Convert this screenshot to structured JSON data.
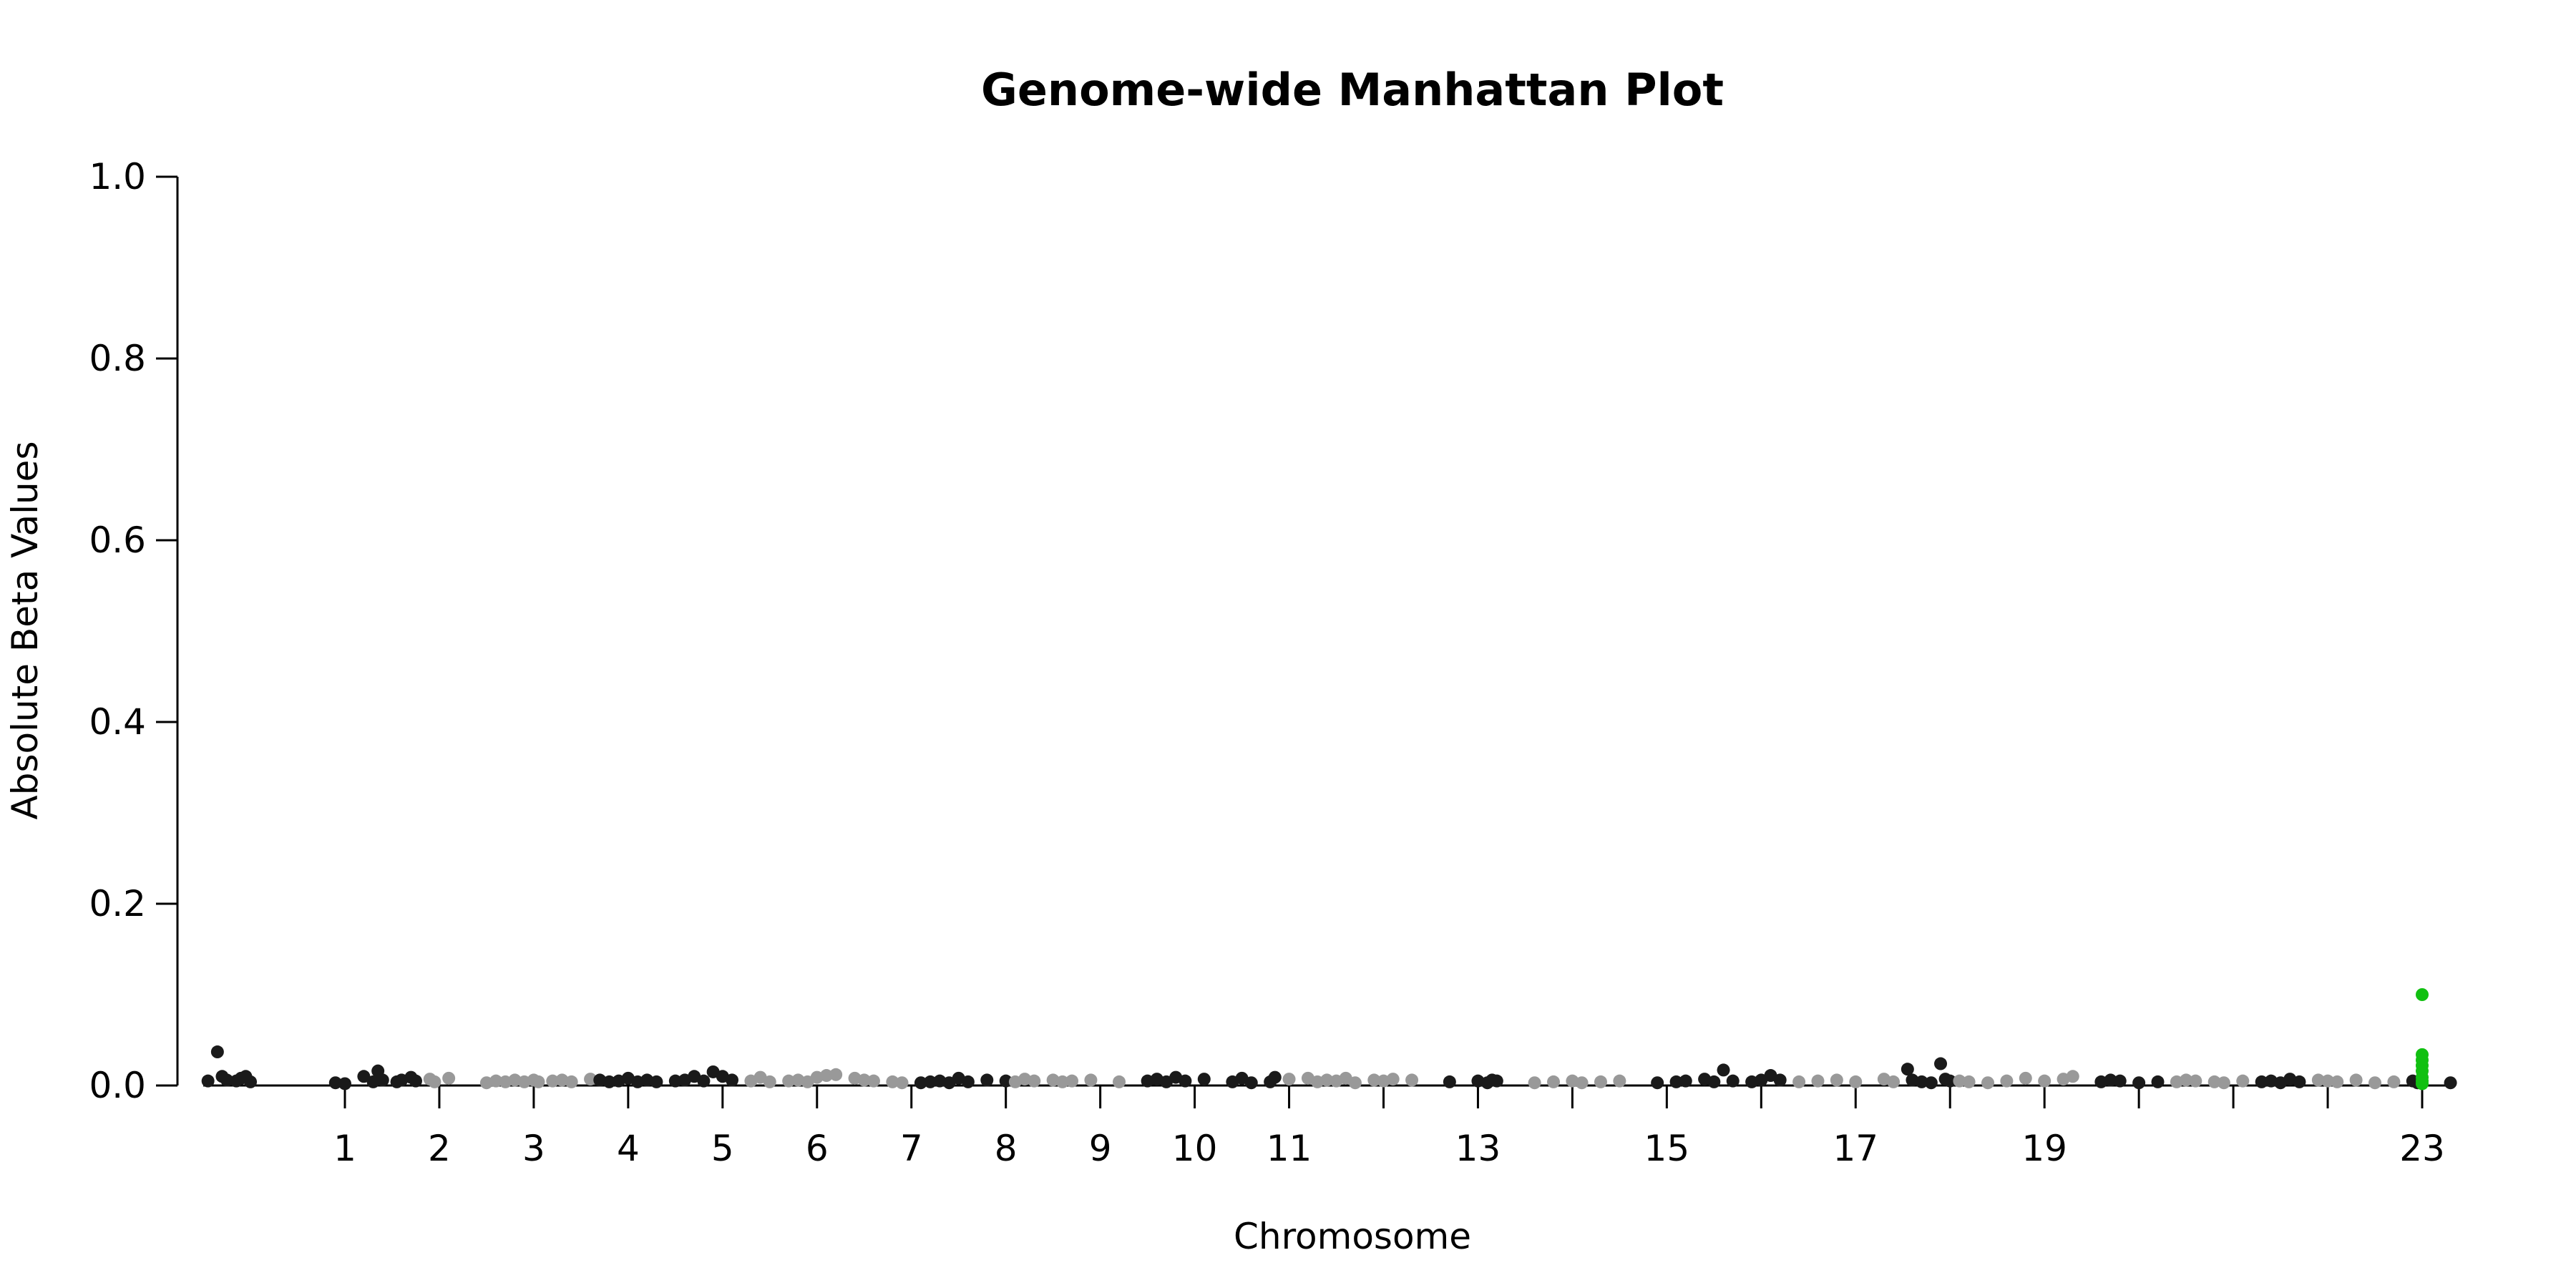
{
  "chart_data": {
    "type": "scatter",
    "title": "Genome-wide Manhattan Plot",
    "xlabel": "Chromosome",
    "ylabel": "Absolute Beta Values",
    "ylim": [
      0,
      1.0
    ],
    "y_ticks": [
      "0.0",
      "0.2",
      "0.4",
      "0.6",
      "0.8",
      "1.0"
    ],
    "grid": false,
    "legend": "none",
    "x_range": [
      -0.5,
      23.3
    ],
    "chromosome_ticks": [
      {
        "pos": 1,
        "label": "1"
      },
      {
        "pos": 2,
        "label": "2"
      },
      {
        "pos": 3,
        "label": "3"
      },
      {
        "pos": 4,
        "label": "4"
      },
      {
        "pos": 5,
        "label": "5"
      },
      {
        "pos": 6,
        "label": "6"
      },
      {
        "pos": 7,
        "label": "7"
      },
      {
        "pos": 8,
        "label": "8"
      },
      {
        "pos": 9,
        "label": "9"
      },
      {
        "pos": 10,
        "label": "10"
      },
      {
        "pos": 11,
        "label": "11"
      },
      {
        "pos": 12,
        "label": ""
      },
      {
        "pos": 13,
        "label": "13"
      },
      {
        "pos": 14,
        "label": ""
      },
      {
        "pos": 15,
        "label": "15"
      },
      {
        "pos": 16,
        "label": ""
      },
      {
        "pos": 17,
        "label": "17"
      },
      {
        "pos": 18,
        "label": ""
      },
      {
        "pos": 19,
        "label": "19"
      },
      {
        "pos": 20,
        "label": ""
      },
      {
        "pos": 21,
        "label": ""
      },
      {
        "pos": 22,
        "label": ""
      },
      {
        "pos": 23,
        "label": "23"
      }
    ],
    "colors": {
      "dark": "#1a1a1a",
      "light": "#999999",
      "highlight": "#11c011"
    },
    "series": [
      {
        "color": "dark",
        "points": [
          [
            -0.45,
            0.005
          ],
          [
            -0.35,
            0.037
          ],
          [
            -0.3,
            0.01
          ],
          [
            -0.25,
            0.006
          ],
          [
            -0.15,
            0.005
          ],
          [
            -0.1,
            0.008
          ],
          [
            -0.05,
            0.01
          ],
          [
            0.0,
            0.004
          ],
          [
            0.9,
            0.003
          ],
          [
            1.0,
            0.002
          ],
          [
            1.2,
            0.01
          ],
          [
            1.3,
            0.004
          ],
          [
            1.35,
            0.016
          ],
          [
            1.4,
            0.006
          ],
          [
            1.55,
            0.004
          ],
          [
            1.6,
            0.006
          ],
          [
            1.7,
            0.009
          ],
          [
            1.75,
            0.005
          ]
        ]
      },
      {
        "color": "light",
        "points": [
          [
            1.9,
            0.007
          ],
          [
            1.95,
            0.004
          ],
          [
            2.1,
            0.008
          ],
          [
            2.5,
            0.003
          ],
          [
            2.6,
            0.005
          ],
          [
            2.7,
            0.004
          ],
          [
            2.8,
            0.006
          ],
          [
            2.9,
            0.004
          ],
          [
            3.0,
            0.006
          ],
          [
            3.05,
            0.004
          ],
          [
            3.2,
            0.005
          ],
          [
            3.3,
            0.006
          ],
          [
            3.4,
            0.004
          ],
          [
            3.6,
            0.007
          ]
        ]
      },
      {
        "color": "dark",
        "points": [
          [
            3.7,
            0.006
          ],
          [
            3.8,
            0.004
          ],
          [
            3.9,
            0.005
          ],
          [
            4.0,
            0.008
          ],
          [
            4.1,
            0.004
          ],
          [
            4.2,
            0.006
          ],
          [
            4.3,
            0.004
          ],
          [
            4.5,
            0.005
          ],
          [
            4.6,
            0.006
          ],
          [
            4.7,
            0.01
          ],
          [
            4.8,
            0.005
          ],
          [
            4.9,
            0.015
          ],
          [
            5.0,
            0.01
          ],
          [
            5.1,
            0.006
          ]
        ]
      },
      {
        "color": "light",
        "points": [
          [
            5.3,
            0.005
          ],
          [
            5.4,
            0.009
          ],
          [
            5.5,
            0.004
          ],
          [
            5.7,
            0.005
          ],
          [
            5.8,
            0.006
          ],
          [
            5.9,
            0.004
          ],
          [
            6.0,
            0.009
          ],
          [
            6.1,
            0.011
          ],
          [
            6.2,
            0.012
          ],
          [
            6.4,
            0.008
          ],
          [
            6.5,
            0.006
          ],
          [
            6.6,
            0.005
          ],
          [
            6.8,
            0.004
          ],
          [
            6.9,
            0.003
          ]
        ]
      },
      {
        "color": "dark",
        "points": [
          [
            7.1,
            0.003
          ],
          [
            7.2,
            0.004
          ],
          [
            7.3,
            0.005
          ],
          [
            7.4,
            0.003
          ],
          [
            7.5,
            0.008
          ],
          [
            7.6,
            0.004
          ],
          [
            7.8,
            0.006
          ],
          [
            8.0,
            0.005
          ]
        ]
      },
      {
        "color": "light",
        "points": [
          [
            8.1,
            0.004
          ],
          [
            8.2,
            0.007
          ],
          [
            8.3,
            0.005
          ],
          [
            8.5,
            0.006
          ],
          [
            8.6,
            0.004
          ],
          [
            8.7,
            0.005
          ],
          [
            8.9,
            0.006
          ],
          [
            9.2,
            0.004
          ]
        ]
      },
      {
        "color": "dark",
        "points": [
          [
            9.5,
            0.005
          ],
          [
            9.6,
            0.007
          ],
          [
            9.7,
            0.004
          ],
          [
            9.8,
            0.009
          ],
          [
            9.9,
            0.005
          ],
          [
            10.1,
            0.007
          ],
          [
            10.4,
            0.004
          ],
          [
            10.5,
            0.008
          ],
          [
            10.6,
            0.003
          ],
          [
            10.8,
            0.004
          ],
          [
            10.85,
            0.009
          ]
        ]
      },
      {
        "color": "light",
        "points": [
          [
            11.0,
            0.007
          ],
          [
            11.2,
            0.008
          ],
          [
            11.3,
            0.004
          ],
          [
            11.4,
            0.006
          ],
          [
            11.5,
            0.005
          ],
          [
            11.6,
            0.008
          ],
          [
            11.7,
            0.003
          ],
          [
            11.9,
            0.006
          ],
          [
            12.0,
            0.005
          ],
          [
            12.1,
            0.007
          ],
          [
            12.3,
            0.006
          ]
        ]
      },
      {
        "color": "dark",
        "points": [
          [
            12.7,
            0.004
          ],
          [
            13.0,
            0.005
          ],
          [
            13.1,
            0.003
          ],
          [
            13.15,
            0.006
          ],
          [
            13.2,
            0.005
          ]
        ]
      },
      {
        "color": "light",
        "points": [
          [
            13.6,
            0.003
          ],
          [
            13.8,
            0.004
          ],
          [
            14.0,
            0.005
          ],
          [
            14.1,
            0.003
          ],
          [
            14.3,
            0.004
          ],
          [
            14.5,
            0.005
          ]
        ]
      },
      {
        "color": "dark",
        "points": [
          [
            14.9,
            0.003
          ],
          [
            15.1,
            0.004
          ],
          [
            15.2,
            0.005
          ],
          [
            15.4,
            0.007
          ],
          [
            15.5,
            0.004
          ],
          [
            15.6,
            0.017
          ],
          [
            15.7,
            0.005
          ],
          [
            15.9,
            0.004
          ],
          [
            16.0,
            0.006
          ],
          [
            16.1,
            0.011
          ],
          [
            16.2,
            0.006
          ]
        ]
      },
      {
        "color": "light",
        "points": [
          [
            16.4,
            0.004
          ],
          [
            16.6,
            0.005
          ],
          [
            16.8,
            0.006
          ],
          [
            17.0,
            0.004
          ],
          [
            17.3,
            0.007
          ],
          [
            17.4,
            0.004
          ]
        ]
      },
      {
        "color": "dark",
        "points": [
          [
            17.55,
            0.018
          ],
          [
            17.6,
            0.006
          ],
          [
            17.7,
            0.004
          ],
          [
            17.8,
            0.003
          ],
          [
            17.9,
            0.024
          ],
          [
            17.95,
            0.007
          ],
          [
            18.0,
            0.005
          ]
        ]
      },
      {
        "color": "light",
        "points": [
          [
            18.1,
            0.005
          ],
          [
            18.2,
            0.004
          ],
          [
            18.4,
            0.003
          ],
          [
            18.6,
            0.005
          ],
          [
            18.8,
            0.008
          ],
          [
            19.0,
            0.005
          ],
          [
            19.2,
            0.007
          ],
          [
            19.3,
            0.01
          ]
        ]
      },
      {
        "color": "dark",
        "points": [
          [
            19.6,
            0.004
          ],
          [
            19.7,
            0.006
          ],
          [
            19.8,
            0.005
          ],
          [
            20.0,
            0.003
          ],
          [
            20.2,
            0.004
          ]
        ]
      },
      {
        "color": "light",
        "points": [
          [
            20.4,
            0.004
          ],
          [
            20.5,
            0.006
          ],
          [
            20.6,
            0.005
          ],
          [
            20.8,
            0.004
          ],
          [
            20.9,
            0.003
          ],
          [
            21.1,
            0.005
          ]
        ]
      },
      {
        "color": "dark",
        "points": [
          [
            21.3,
            0.004
          ],
          [
            21.4,
            0.005
          ],
          [
            21.5,
            0.003
          ],
          [
            21.6,
            0.007
          ],
          [
            21.7,
            0.004
          ]
        ]
      },
      {
        "color": "light",
        "points": [
          [
            21.9,
            0.006
          ],
          [
            22.0,
            0.005
          ],
          [
            22.1,
            0.004
          ],
          [
            22.3,
            0.006
          ],
          [
            22.5,
            0.003
          ],
          [
            22.7,
            0.004
          ]
        ]
      },
      {
        "color": "dark",
        "points": [
          [
            22.9,
            0.005
          ],
          [
            22.95,
            0.003
          ],
          [
            23.3,
            0.003
          ]
        ]
      },
      {
        "color": "highlight",
        "points": [
          [
            23.0,
            0.1
          ],
          [
            23.0,
            0.034
          ],
          [
            23.0,
            0.028
          ],
          [
            23.0,
            0.022
          ],
          [
            23.0,
            0.016
          ],
          [
            23.0,
            0.009
          ],
          [
            23.0,
            0.005
          ],
          [
            23.0,
            0.002
          ]
        ]
      }
    ]
  }
}
